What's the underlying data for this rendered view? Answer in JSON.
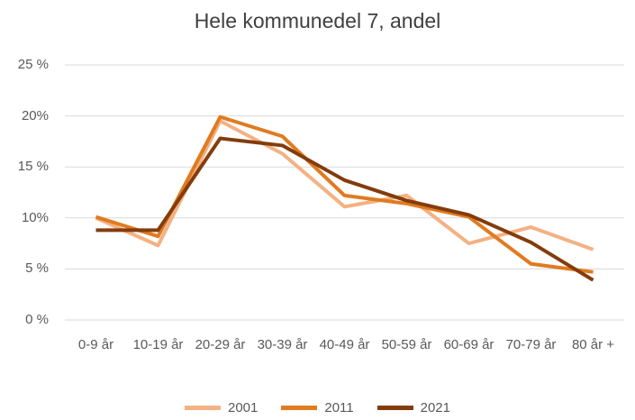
{
  "chart_data": {
    "type": "line",
    "title": "Hele kommunedel  7, andel",
    "categories": [
      "0-9 år",
      "10-19 år",
      "20-29 år",
      "30-39 år",
      "40-49 år",
      "50-59 år",
      "60-69 år",
      "70-79 år",
      "80 år +"
    ],
    "series": [
      {
        "name": "2001",
        "color": "#f4b183",
        "values": [
          10.0,
          7.3,
          19.5,
          16.3,
          11.1,
          12.2,
          7.5,
          9.1,
          6.9
        ]
      },
      {
        "name": "2011",
        "color": "#e07b21",
        "values": [
          10.1,
          8.2,
          19.9,
          18.0,
          12.2,
          11.4,
          10.1,
          5.5,
          4.7
        ]
      },
      {
        "name": "2021",
        "color": "#843c0c",
        "values": [
          8.8,
          8.8,
          17.8,
          17.1,
          13.7,
          11.7,
          10.3,
          7.6,
          3.9
        ]
      }
    ],
    "ylim": [
      0,
      25
    ],
    "yticks": [
      {
        "value": 0,
        "label": "0 %"
      },
      {
        "value": 5,
        "label": "5 %"
      },
      {
        "value": 10,
        "label": "10%"
      },
      {
        "value": 15,
        "label": "15 %"
      },
      {
        "value": 20,
        "label": "20%"
      },
      {
        "value": 25,
        "label": "25 %"
      }
    ],
    "grid": true,
    "legend": "bottom"
  }
}
